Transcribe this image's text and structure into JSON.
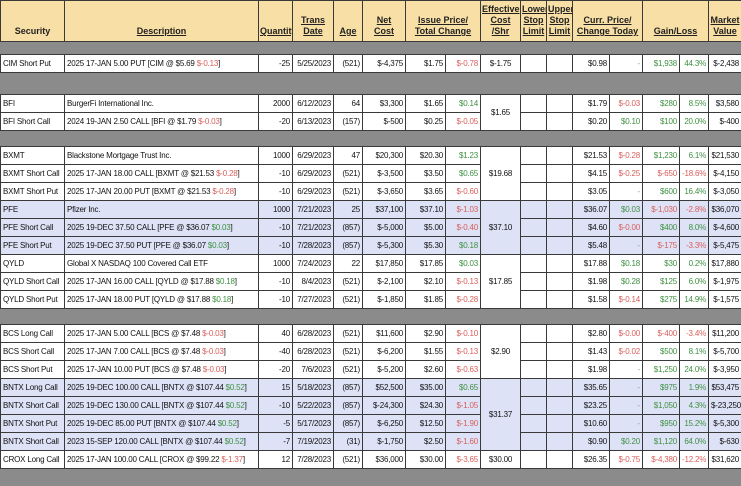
{
  "colors": {
    "red": "#d9605c",
    "green": "#3f9142",
    "header_bg": "#f8dfa5",
    "row_highlight_bg": "#dde2f6",
    "page_bg": "#8b8b8b"
  },
  "header": {
    "columns": [
      {
        "id": "sec",
        "lines": [
          "Security"
        ],
        "span": 1,
        "underline": false
      },
      {
        "id": "desc",
        "lines": [
          "Description"
        ],
        "span": 1,
        "underline": true
      },
      {
        "id": "qty",
        "lines": [
          "Quantity"
        ],
        "span": 1,
        "underline": true
      },
      {
        "id": "date",
        "lines": [
          "Trans",
          "Date"
        ],
        "span": 1,
        "underline": true
      },
      {
        "id": "age",
        "lines": [
          "Age"
        ],
        "span": 1,
        "underline": true
      },
      {
        "id": "net",
        "lines": [
          "Net",
          "Cost"
        ],
        "span": 1,
        "underline": true
      },
      {
        "id": "issue",
        "lines": [
          "Issue Price/",
          "Total Change"
        ],
        "span": 2,
        "underline": true
      },
      {
        "id": "eff",
        "lines": [
          "Effective",
          "Cost",
          "/Shr"
        ],
        "span": 1,
        "underline": true
      },
      {
        "id": "lstop",
        "lines": [
          "Lower",
          "Stop",
          "Limit"
        ],
        "span": 1,
        "underline": true
      },
      {
        "id": "ustop",
        "lines": [
          "Upper",
          "Stop",
          "Limit"
        ],
        "span": 1,
        "underline": true
      },
      {
        "id": "curr",
        "lines": [
          "Curr. Price/",
          "Change Today"
        ],
        "span": 2,
        "underline": true
      },
      {
        "id": "gain",
        "lines": [
          "Gain/Loss"
        ],
        "span": 2,
        "underline": true
      },
      {
        "id": "mkt",
        "lines": [
          "Market",
          "Value"
        ],
        "span": 1,
        "underline": true
      }
    ]
  },
  "sections": [
    {
      "rows": [
        {
          "bg": "w",
          "sec": "CIM Short Put",
          "desc": "2025 17-JAN 5.00 PUT [CIM @ $5.69 ",
          "chg": "$-0.13",
          "chg_c": "red",
          "qty": "-25",
          "date": "5/25/2023",
          "age": "(521)",
          "net": "$-4,375",
          "issue": "$1.75",
          "tchg": "$-0.78",
          "tchg_c": "red",
          "eff": "$-1.75",
          "eff_span": 1,
          "curr": "$0.98",
          "dchg": "-",
          "dchg_c": "dash",
          "gain": "$1,938",
          "gain_c": "green",
          "pct": "44.3%",
          "pct_c": "green",
          "mkt": "$-2,438"
        }
      ]
    },
    {
      "rows": [
        {
          "bg": "w",
          "sec": "BFI",
          "desc": "BurgerFi International Inc.",
          "qty": "2000",
          "date": "6/12/2023",
          "age": "64",
          "net": "$3,300",
          "issue": "$1.65",
          "tchg": "$0.14",
          "tchg_c": "green",
          "eff": "$1.65",
          "eff_span": 2,
          "curr": "$1.79",
          "dchg": "$-0.03",
          "dchg_c": "red",
          "gain": "$280",
          "gain_c": "green",
          "pct": "8.5%",
          "pct_c": "green",
          "mkt": "$3,580"
        },
        {
          "bg": "w",
          "sec": "BFI Short Call",
          "desc": "2024 19-JAN 2.50 CALL [BFI @ $1.79 ",
          "chg": "$-0.03",
          "chg_c": "red",
          "qty": "-20",
          "date": "6/13/2023",
          "age": "(157)",
          "net": "$-500",
          "issue": "$0.25",
          "tchg": "$-0.05",
          "tchg_c": "red",
          "curr": "$0.20",
          "dchg": "$0.10",
          "dchg_c": "green",
          "gain": "$100",
          "gain_c": "green",
          "pct": "20.0%",
          "pct_c": "green",
          "mkt": "$-400"
        }
      ]
    },
    {
      "rows": [
        {
          "bg": "w",
          "sec": "BXMT",
          "desc": "Blackstone Mortgage Trust Inc.",
          "qty": "1000",
          "date": "6/29/2023",
          "age": "47",
          "net": "$20,300",
          "issue": "$20.30",
          "tchg": "$1.23",
          "tchg_c": "green",
          "eff": "$19.68",
          "eff_span": 3,
          "curr": "$21.53",
          "dchg": "$-0.28",
          "dchg_c": "red",
          "gain": "$1,230",
          "gain_c": "green",
          "pct": "6.1%",
          "pct_c": "green",
          "mkt": "$21,530"
        },
        {
          "bg": "w",
          "sec": "BXMT Short Call",
          "desc": "2025 17-JAN 18.00 CALL [BXMT @ $21.53 ",
          "chg": "$-0.28",
          "chg_c": "red",
          "qty": "-10",
          "date": "6/29/2023",
          "age": "(521)",
          "net": "$-3,500",
          "issue": "$3.50",
          "tchg": "$0.65",
          "tchg_c": "green",
          "curr": "$4.15",
          "dchg": "$-0.25",
          "dchg_c": "red",
          "gain": "$-650",
          "gain_c": "red",
          "pct": "-18.6%",
          "pct_c": "red",
          "mkt": "$-4,150"
        },
        {
          "bg": "w",
          "sec": "BXMT Short Put",
          "desc": "2025 17-JAN 20.00 PUT [BXMT @ $21.53 ",
          "chg": "$-0.28",
          "chg_c": "red",
          "qty": "-10",
          "date": "6/29/2023",
          "age": "(521)",
          "net": "$-3,650",
          "issue": "$3.65",
          "tchg": "$-0.60",
          "tchg_c": "red",
          "curr": "$3.05",
          "dchg": "-",
          "dchg_c": "dash",
          "gain": "$600",
          "gain_c": "green",
          "pct": "16.4%",
          "pct_c": "green",
          "mkt": "$-3,050"
        },
        {
          "bg": "l",
          "sec": "PFE",
          "desc": "Pfizer Inc.",
          "qty": "1000",
          "date": "7/21/2023",
          "age": "25",
          "net": "$37,100",
          "issue": "$37.10",
          "tchg": "$-1.03",
          "tchg_c": "red",
          "eff": "$37.10",
          "eff_span": 3,
          "curr": "$36.07",
          "dchg": "$0.03",
          "dchg_c": "green",
          "gain": "$-1,030",
          "gain_c": "red",
          "pct": "-2.8%",
          "pct_c": "red",
          "mkt": "$36,070"
        },
        {
          "bg": "l",
          "sec": "PFE Short Call",
          "desc": "2025 19-DEC 37.50 CALL [PFE @ $36.07 ",
          "chg": "$0.03",
          "chg_c": "green",
          "qty": "-10",
          "date": "7/21/2023",
          "age": "(857)",
          "net": "$-5,000",
          "issue": "$5.00",
          "tchg": "$-0.40",
          "tchg_c": "red",
          "curr": "$4.60",
          "dchg": "$-0.00",
          "dchg_c": "red",
          "gain": "$400",
          "gain_c": "green",
          "pct": "8.0%",
          "pct_c": "green",
          "mkt": "$-4,600"
        },
        {
          "bg": "l",
          "sec": "PFE Short Put",
          "desc": "2025 19-DEC 37.50 PUT [PFE @ $36.07 ",
          "chg": "$0.03",
          "chg_c": "green",
          "qty": "-10",
          "date": "7/28/2023",
          "age": "(857)",
          "net": "$-5,300",
          "issue": "$5.30",
          "tchg": "$0.18",
          "tchg_c": "green",
          "curr": "$5.48",
          "dchg": "-",
          "dchg_c": "dash",
          "gain": "$-175",
          "gain_c": "red",
          "pct": "-3.3%",
          "pct_c": "red",
          "mkt": "$-5,475"
        },
        {
          "bg": "w",
          "sec": "QYLD",
          "desc": "Global X NASDAQ 100 Covered Call ETF",
          "qty": "1000",
          "date": "7/24/2023",
          "age": "22",
          "net": "$17,850",
          "issue": "$17.85",
          "tchg": "$0.03",
          "tchg_c": "green",
          "eff": "$17.85",
          "eff_span": 3,
          "curr": "$17.88",
          "dchg": "$0.18",
          "dchg_c": "green",
          "gain": "$30",
          "gain_c": "green",
          "pct": "0.2%",
          "pct_c": "green",
          "mkt": "$17,880"
        },
        {
          "bg": "w",
          "sec": "QYLD Short Call",
          "desc": "2025 17-JAN 16.00 CALL [QYLD @ $17.88 ",
          "chg": "$0.18",
          "chg_c": "green",
          "qty": "-10",
          "date": "8/4/2023",
          "age": "(521)",
          "net": "$-2,100",
          "issue": "$2.10",
          "tchg": "$-0.13",
          "tchg_c": "red",
          "curr": "$1.98",
          "dchg": "$0.28",
          "dchg_c": "green",
          "gain": "$125",
          "gain_c": "green",
          "pct": "6.0%",
          "pct_c": "green",
          "mkt": "$-1,975"
        },
        {
          "bg": "w",
          "sec": "QYLD Short Put",
          "desc": "2025 17-JAN 18.00 PUT [QYLD @ $17.88 ",
          "chg": "$0.18",
          "chg_c": "green",
          "qty": "-10",
          "date": "7/27/2023",
          "age": "(521)",
          "net": "$-1,850",
          "issue": "$1.85",
          "tchg": "$-0.28",
          "tchg_c": "red",
          "curr": "$1.58",
          "dchg": "$-0.14",
          "dchg_c": "red",
          "gain": "$275",
          "gain_c": "green",
          "pct": "14.9%",
          "pct_c": "green",
          "mkt": "$-1,575"
        }
      ]
    },
    {
      "rows": [
        {
          "bg": "w",
          "sec": "BCS Long Call",
          "desc": "2025 17-JAN 5.00 CALL [BCS @ $7.48 ",
          "chg": "$-0.03",
          "chg_c": "red",
          "qty": "40",
          "date": "6/28/2023",
          "age": "(521)",
          "net": "$11,600",
          "issue": "$2.90",
          "tchg": "$-0.10",
          "tchg_c": "red",
          "eff": "$2.90",
          "eff_span": 3,
          "curr": "$2.80",
          "dchg": "$-0.00",
          "dchg_c": "red",
          "gain": "$-400",
          "gain_c": "red",
          "pct": "-3.4%",
          "pct_c": "red",
          "mkt": "$11,200"
        },
        {
          "bg": "w",
          "sec": "BCS Short Call",
          "desc": "2025 17-JAN 7.00 CALL [BCS @ $7.48 ",
          "chg": "$-0.03",
          "chg_c": "red",
          "qty": "-40",
          "date": "6/28/2023",
          "age": "(521)",
          "net": "$-6,200",
          "issue": "$1.55",
          "tchg": "$-0.13",
          "tchg_c": "red",
          "curr": "$1.43",
          "dchg": "$-0.02",
          "dchg_c": "red",
          "gain": "$500",
          "gain_c": "green",
          "pct": "8.1%",
          "pct_c": "green",
          "mkt": "$-5,700"
        },
        {
          "bg": "w",
          "sec": "BCS Short Put",
          "desc": "2025 17-JAN 10.00 PUT [BCS @ $7.48 ",
          "chg": "$-0.03",
          "chg_c": "red",
          "qty": "-20",
          "date": "7/6/2023",
          "age": "(521)",
          "net": "$-5,200",
          "issue": "$2.60",
          "tchg": "$-0.63",
          "tchg_c": "red",
          "curr": "$1.98",
          "dchg": "-",
          "dchg_c": "dash",
          "gain": "$1,250",
          "gain_c": "green",
          "pct": "24.0%",
          "pct_c": "green",
          "mkt": "$-3,950"
        },
        {
          "bg": "l",
          "sec": "BNTX Long Call",
          "desc": "2025 19-DEC 100.00 CALL [BNTX @ $107.44 ",
          "chg": "$0.52",
          "chg_c": "green",
          "qty": "15",
          "date": "5/18/2023",
          "age": "(857)",
          "net": "$52,500",
          "issue": "$35.00",
          "tchg": "$0.65",
          "tchg_c": "green",
          "eff": "$31.37",
          "eff_span": 4,
          "curr": "$35.65",
          "dchg": "-",
          "dchg_c": "dash",
          "gain": "$975",
          "gain_c": "green",
          "pct": "1.9%",
          "pct_c": "green",
          "mkt": "$53,475"
        },
        {
          "bg": "l",
          "sec": "BNTX Short Call",
          "desc": "2025 19-DEC 130.00 CALL [BNTX @ $107.44 ",
          "chg": "$0.52",
          "chg_c": "green",
          "qty": "-10",
          "date": "5/22/2023",
          "age": "(857)",
          "net": "$-24,300",
          "issue": "$24.30",
          "tchg": "$-1.05",
          "tchg_c": "red",
          "curr": "$23.25",
          "dchg": "-",
          "dchg_c": "dash",
          "gain": "$1,050",
          "gain_c": "green",
          "pct": "4.3%",
          "pct_c": "green",
          "mkt": "$-23,250"
        },
        {
          "bg": "l",
          "sec": "BNTX Short Put",
          "desc": "2025 19-DEC 85.00 PUT [BNTX @ $107.44 ",
          "chg": "$0.52",
          "chg_c": "green",
          "qty": "-5",
          "date": "5/17/2023",
          "age": "(857)",
          "net": "$-6,250",
          "issue": "$12.50",
          "tchg": "$-1.90",
          "tchg_c": "red",
          "curr": "$10.60",
          "dchg": "-",
          "dchg_c": "dash",
          "gain": "$950",
          "gain_c": "green",
          "pct": "15.2%",
          "pct_c": "green",
          "mkt": "$-5,300"
        },
        {
          "bg": "l",
          "sec": "BNTX Short Call",
          "desc": "2023 15-SEP 120.00 CALL [BNTX @ $107.44 ",
          "chg": "$0.52",
          "chg_c": "green",
          "qty": "-7",
          "date": "7/19/2023",
          "age": "(31)",
          "net": "$-1,750",
          "issue": "$2.50",
          "tchg": "$-1.60",
          "tchg_c": "red",
          "curr": "$0.90",
          "dchg": "$0.20",
          "dchg_c": "green",
          "gain": "$1,120",
          "gain_c": "green",
          "pct": "64.0%",
          "pct_c": "green",
          "mkt": "$-630"
        },
        {
          "bg": "w",
          "sec": "CROX Long Call",
          "desc": "2025 17-JAN 100.00 CALL [CROX @ $99.22 ",
          "chg": "$-1.37",
          "chg_c": "red",
          "qty": "12",
          "date": "7/28/2023",
          "age": "(521)",
          "net": "$36,000",
          "issue": "$30.00",
          "tchg": "$-3.65",
          "tchg_c": "red",
          "eff": "$30.00",
          "eff_span": 1,
          "curr": "$26.35",
          "dchg": "$-0.75",
          "dchg_c": "red",
          "gain": "$-4,380",
          "gain_c": "red",
          "pct": "-12.2%",
          "pct_c": "red",
          "mkt": "$31,620"
        }
      ]
    }
  ]
}
